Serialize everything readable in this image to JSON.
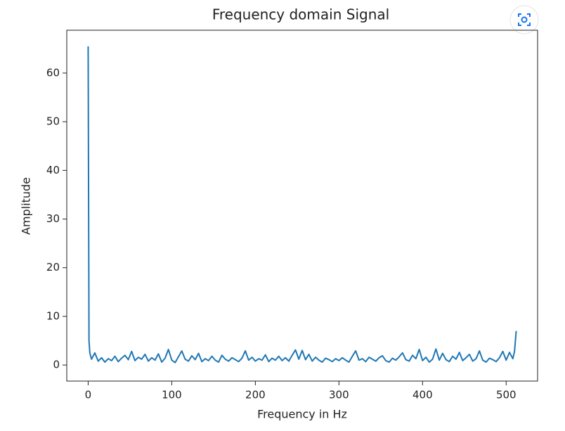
{
  "chart_data": {
    "type": "line",
    "title": "Frequency domain Signal",
    "x_label": "Frequency in Hz",
    "y_label": "Amplitude",
    "x": [
      0,
      1,
      2,
      4,
      8,
      12,
      16,
      20,
      24,
      28,
      32,
      36,
      40,
      44,
      48,
      52,
      56,
      60,
      64,
      68,
      72,
      76,
      80,
      84,
      88,
      92,
      96,
      100,
      104,
      108,
      112,
      116,
      120,
      124,
      128,
      132,
      136,
      140,
      144,
      148,
      152,
      156,
      160,
      164,
      168,
      172,
      176,
      180,
      184,
      188,
      192,
      196,
      200,
      204,
      208,
      212,
      216,
      220,
      224,
      228,
      232,
      236,
      240,
      244,
      248,
      252,
      256,
      260,
      264,
      268,
      272,
      276,
      280,
      284,
      288,
      292,
      296,
      300,
      304,
      308,
      312,
      316,
      320,
      324,
      328,
      332,
      336,
      340,
      344,
      348,
      352,
      356,
      360,
      364,
      368,
      372,
      376,
      380,
      384,
      388,
      392,
      396,
      400,
      404,
      408,
      412,
      416,
      420,
      424,
      428,
      432,
      436,
      440,
      444,
      448,
      452,
      456,
      460,
      464,
      468,
      472,
      476,
      480,
      484,
      488,
      492,
      496,
      500,
      504,
      508,
      510,
      512
    ],
    "values": [
      65.5,
      5,
      2.5,
      1.2,
      2.5,
      0.8,
      1.5,
      0.6,
      1.3,
      0.9,
      1.8,
      0.7,
      1.4,
      2.0,
      1.1,
      2.8,
      0.9,
      1.6,
      1.2,
      2.2,
      0.8,
      1.5,
      1.0,
      2.3,
      0.6,
      1.4,
      3.2,
      1.0,
      0.5,
      1.7,
      2.9,
      1.2,
      0.8,
      1.9,
      1.1,
      2.4,
      0.7,
      1.3,
      0.9,
      1.8,
      1.0,
      0.6,
      2.0,
      1.2,
      0.8,
      1.5,
      1.1,
      0.7,
      1.4,
      2.9,
      1.0,
      1.6,
      0.8,
      1.3,
      1.0,
      2.1,
      0.7,
      1.4,
      1.0,
      1.8,
      0.9,
      1.5,
      0.8,
      2.0,
      3.1,
      1.2,
      3.0,
      1.1,
      2.2,
      0.8,
      1.6,
      1.0,
      0.6,
      1.4,
      1.1,
      0.7,
      1.3,
      0.9,
      1.5,
      1.0,
      0.6,
      1.8,
      2.9,
      1.0,
      1.3,
      0.7,
      1.6,
      1.2,
      0.8,
      1.5,
      1.9,
      0.9,
      0.6,
      1.4,
      1.0,
      1.7,
      2.5,
      1.1,
      0.8,
      2.0,
      1.3,
      3.2,
      0.9,
      1.6,
      0.6,
      1.2,
      3.3,
      1.0,
      2.4,
      1.1,
      0.7,
      1.8,
      1.2,
      2.6,
      0.9,
      1.5,
      2.2,
      0.8,
      1.3,
      2.9,
      1.0,
      0.6,
      1.4,
      1.1,
      0.7,
      1.5,
      2.8,
      1.0,
      2.6,
      1.3,
      2.8,
      7
    ],
    "color": "#1f77b4",
    "xlim": [
      -25.6,
      537.6
    ],
    "xticks": [
      0,
      100,
      200,
      300,
      400,
      500
    ],
    "ylim": [
      -3.3,
      68.8
    ],
    "yticks": [
      0,
      10,
      20,
      30,
      40,
      50,
      60
    ]
  }
}
